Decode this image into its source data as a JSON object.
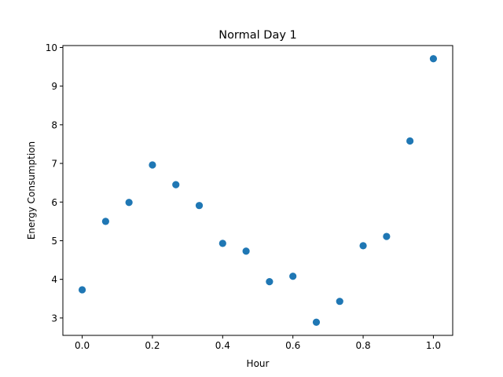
{
  "chart_data": {
    "type": "scatter",
    "title": "Normal Day 1",
    "xlabel": "Hour",
    "ylabel": "Energy Consumption",
    "xlim": [
      -0.055,
      1.055
    ],
    "ylim": [
      2.55,
      10.05
    ],
    "xticks": [
      0.0,
      0.2,
      0.4,
      0.6,
      0.8,
      1.0
    ],
    "xtick_labels": [
      "0.0",
      "0.2",
      "0.4",
      "0.6",
      "0.8",
      "1.0"
    ],
    "yticks": [
      3,
      4,
      5,
      6,
      7,
      8,
      9,
      10
    ],
    "ytick_labels": [
      "3",
      "4",
      "5",
      "6",
      "7",
      "8",
      "9",
      "10"
    ],
    "grid": false,
    "legend": false,
    "marker_color": "#1f77b4",
    "series": [
      {
        "x": [
          0.0,
          0.0667,
          0.1333,
          0.2,
          0.2667,
          0.3333,
          0.4,
          0.4667,
          0.5333,
          0.6,
          0.6667,
          0.7333,
          0.8,
          0.8667,
          0.9333,
          1.0
        ],
        "y": [
          3.73,
          5.5,
          5.99,
          6.96,
          6.45,
          5.91,
          4.93,
          4.73,
          3.94,
          4.08,
          2.89,
          3.43,
          4.87,
          5.11,
          7.58,
          9.71
        ]
      }
    ]
  }
}
